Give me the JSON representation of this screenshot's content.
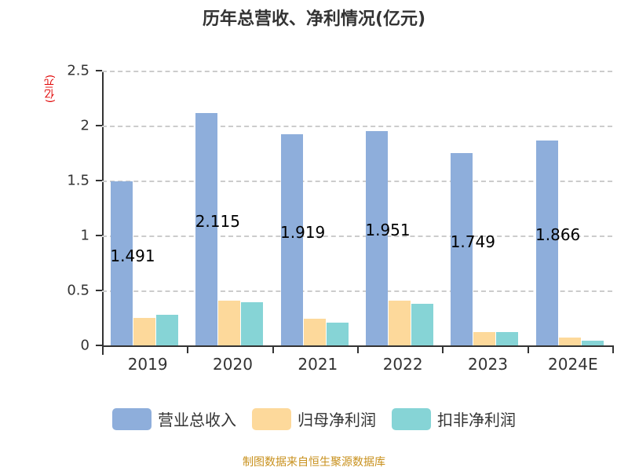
{
  "title": "历年总营收、净利情况(亿元)",
  "unit_label": "(亿元)",
  "source": "制图数据来自恒生聚源数据库",
  "colors": {
    "revenue": "#8eaedb",
    "parent_profit": "#fdd99b",
    "deducted_profit": "#86d4d6"
  },
  "chart_data": {
    "type": "bar",
    "title": "历年总营收、净利情况(亿元)",
    "xlabel": "",
    "ylabel": "(亿元)",
    "ylim": [
      0,
      2.5
    ],
    "yticks": [
      "0",
      "0.5",
      "1",
      "1.5",
      "2",
      "2.5"
    ],
    "grid": true,
    "legend_position": "bottom",
    "categories": [
      "2019",
      "2020",
      "2021",
      "2022",
      "2023",
      "2024E"
    ],
    "series": [
      {
        "name": "营业总收入",
        "values": [
          1.491,
          2.115,
          1.919,
          1.951,
          1.749,
          1.866
        ],
        "labels": [
          "1.491",
          "2.115",
          "1.919",
          "1.951",
          "1.749",
          "1.866"
        ]
      },
      {
        "name": "归母净利润",
        "values": [
          0.25,
          0.41,
          0.24,
          0.41,
          0.12,
          0.07
        ]
      },
      {
        "name": "扣非净利润",
        "values": [
          0.28,
          0.39,
          0.21,
          0.38,
          0.12,
          0.04
        ]
      }
    ]
  }
}
